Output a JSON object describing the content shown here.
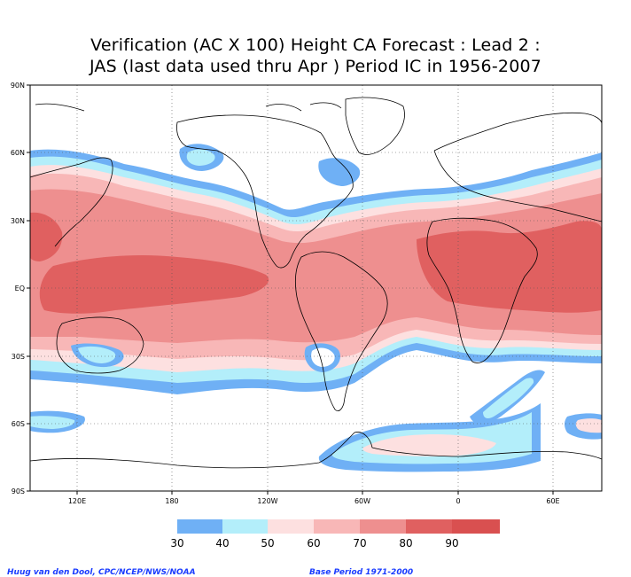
{
  "title": {
    "line1": "Verification (AC X 100) Height CA Forecast : Lead 2 :",
    "line2": "JAS (last data used thru Apr ) Period IC in 1956-2007"
  },
  "axes": {
    "lat_labels": [
      "90N",
      "60N",
      "30N",
      "EQ",
      "30S",
      "60S",
      "90S"
    ],
    "lon_labels": [
      "120E",
      "180",
      "120W",
      "60W",
      "0",
      "60E"
    ]
  },
  "legend": {
    "labels": [
      "30",
      "40",
      "50",
      "60",
      "70",
      "80",
      "90"
    ],
    "colors": [
      "#6fb0f5",
      "#b3eefa",
      "#ffffff",
      "#fde0e0",
      "#f8b7b7",
      "#ee8f8f",
      "#e06060"
    ],
    "top_color": "#d95050"
  },
  "colors": {
    "c30": "#6fb0f5",
    "c40": "#b3eefa",
    "c60": "#fde0e0",
    "c70": "#f8b7b7",
    "c80": "#ee8f8f",
    "c90": "#e06060"
  },
  "footer": {
    "credit": "Huug van den Dool, CPC/NCEP/NWS/NOAA",
    "base_period": "Base Period 1971-2000"
  }
}
